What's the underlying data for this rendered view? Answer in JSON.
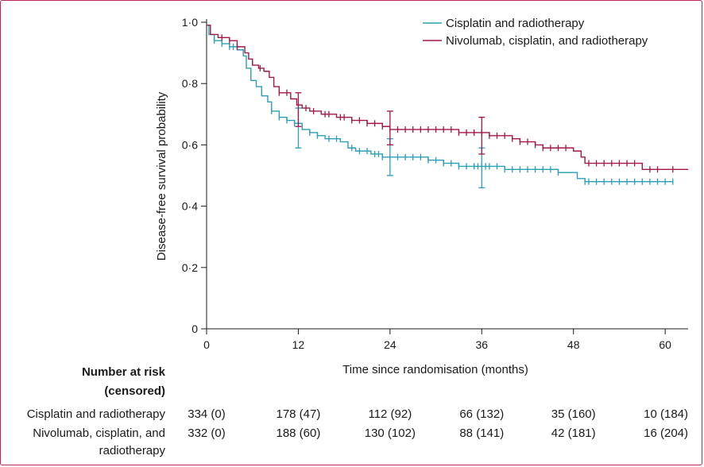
{
  "chart_data": {
    "type": "line",
    "subtype": "kaplan-meier",
    "xlabel": "Time since randomisation (months)",
    "ylabel": "Disease-free survival probability",
    "xlim": [
      0,
      63
    ],
    "ylim": [
      0,
      1
    ],
    "xticks": [
      0,
      12,
      24,
      36,
      48,
      60
    ],
    "xtick_labels": [
      "0",
      "12",
      "24",
      "36",
      "48",
      "60"
    ],
    "yticks": [
      0,
      0.2,
      0.4,
      0.6,
      0.8,
      1.0
    ],
    "ytick_labels": [
      "0",
      "0·2",
      "0·4",
      "0·6",
      "0·8",
      "1·0"
    ],
    "legend_position": "top-right",
    "series": [
      {
        "name": "Cisplatin and radiotherapy",
        "color": "#2aa0b5",
        "steps": [
          [
            0,
            0.99
          ],
          [
            0.3,
            0.96
          ],
          [
            1,
            0.94
          ],
          [
            2,
            0.93
          ],
          [
            3,
            0.92
          ],
          [
            4,
            0.91
          ],
          [
            4.8,
            0.89
          ],
          [
            5.2,
            0.85
          ],
          [
            5.8,
            0.81
          ],
          [
            6.5,
            0.79
          ],
          [
            7.2,
            0.76
          ],
          [
            8,
            0.74
          ],
          [
            8.5,
            0.71
          ],
          [
            9.5,
            0.69
          ],
          [
            10.5,
            0.68
          ],
          [
            11.5,
            0.67
          ],
          [
            12.5,
            0.65
          ],
          [
            13.5,
            0.64
          ],
          [
            14.5,
            0.63
          ],
          [
            15.5,
            0.62
          ],
          [
            17.5,
            0.61
          ],
          [
            18.5,
            0.59
          ],
          [
            19.5,
            0.58
          ],
          [
            21.5,
            0.57
          ],
          [
            23,
            0.56
          ],
          [
            26,
            0.56
          ],
          [
            29,
            0.55
          ],
          [
            31,
            0.54
          ],
          [
            33,
            0.53
          ],
          [
            36,
            0.53
          ],
          [
            39,
            0.52
          ],
          [
            44,
            0.52
          ],
          [
            46,
            0.51
          ],
          [
            48.5,
            0.49
          ],
          [
            49.5,
            0.48
          ],
          [
            61,
            0.48
          ]
        ],
        "end": 61,
        "censor_times": [
          1,
          2,
          3,
          3.5,
          8.5,
          9.5,
          10.5,
          11.5,
          13.5,
          14.5,
          16,
          17,
          19,
          20,
          21,
          22,
          22.5,
          23,
          24,
          25,
          26,
          27,
          28,
          29,
          30,
          31,
          32,
          33,
          34,
          35,
          35.5,
          36,
          36.5,
          37,
          38,
          39,
          40,
          41,
          42,
          43,
          44,
          45,
          46,
          49.5,
          50,
          51,
          52,
          53,
          54,
          55,
          56,
          57,
          58,
          59,
          60,
          61
        ],
        "ci_bars": [
          {
            "x": 12,
            "low": 0.59,
            "high": 0.72
          },
          {
            "x": 24,
            "low": 0.5,
            "high": 0.62
          },
          {
            "x": 36,
            "low": 0.46,
            "high": 0.59
          }
        ]
      },
      {
        "name": "Nivolumab, cisplatin, and radiotherapy",
        "color": "#a3164a",
        "steps": [
          [
            0,
            0.99
          ],
          [
            0.5,
            0.96
          ],
          [
            1.5,
            0.95
          ],
          [
            3,
            0.94
          ],
          [
            4,
            0.92
          ],
          [
            5,
            0.9
          ],
          [
            5.5,
            0.88
          ],
          [
            6,
            0.86
          ],
          [
            6.8,
            0.85
          ],
          [
            7.5,
            0.84
          ],
          [
            8.2,
            0.82
          ],
          [
            8.8,
            0.79
          ],
          [
            9.5,
            0.77
          ],
          [
            11,
            0.75
          ],
          [
            11.8,
            0.73
          ],
          [
            12.5,
            0.72
          ],
          [
            13.5,
            0.71
          ],
          [
            15,
            0.7
          ],
          [
            17,
            0.69
          ],
          [
            19,
            0.68
          ],
          [
            21,
            0.67
          ],
          [
            23,
            0.66
          ],
          [
            24,
            0.65
          ],
          [
            28,
            0.65
          ],
          [
            33,
            0.64
          ],
          [
            37,
            0.63
          ],
          [
            40,
            0.62
          ],
          [
            41,
            0.61
          ],
          [
            43,
            0.6
          ],
          [
            44,
            0.59
          ],
          [
            48,
            0.58
          ],
          [
            49,
            0.56
          ],
          [
            49.5,
            0.54
          ],
          [
            56.5,
            0.54
          ],
          [
            57,
            0.52
          ],
          [
            61,
            0.52
          ]
        ],
        "end": 63,
        "censor_times": [
          2,
          3,
          4,
          7,
          9.5,
          10.5,
          13,
          14,
          15.5,
          16,
          17.5,
          18,
          19,
          20,
          21,
          22,
          23,
          24,
          25,
          26,
          27,
          28,
          29,
          30,
          31,
          32,
          33,
          34,
          35,
          36,
          37,
          38,
          39,
          40,
          41,
          42,
          43,
          44,
          45,
          46,
          47,
          50,
          51,
          52,
          53,
          54,
          55,
          56,
          58,
          59,
          61
        ],
        "ci_bars": [
          {
            "x": 12,
            "low": 0.66,
            "high": 0.77
          },
          {
            "x": 24,
            "low": 0.6,
            "high": 0.71
          },
          {
            "x": 36,
            "low": 0.57,
            "high": 0.69
          }
        ]
      }
    ]
  },
  "risk_table": {
    "header_line1": "Number at risk",
    "header_line2": "(censored)",
    "rows": [
      {
        "label_line1": "Cisplatin and radiotherapy",
        "label_line2": "",
        "values": [
          "334 (0)",
          "178 (47)",
          "112 (92)",
          "66 (132)",
          "35 (160)",
          "10 (184)"
        ]
      },
      {
        "label_line1": "Nivolumab, cisplatin, and",
        "label_line2": "radiotherapy",
        "values": [
          "332 (0)",
          "188 (60)",
          "130 (102)",
          "88 (141)",
          "42 (181)",
          "16 (204)"
        ]
      }
    ]
  }
}
